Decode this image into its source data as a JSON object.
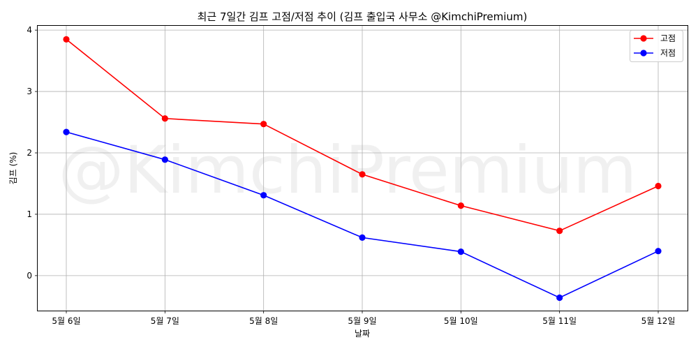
{
  "chart_data": {
    "type": "line",
    "title": "최근 7일간 김프 고점/저점 추이 (김프 출입국 사무소 @KimchiPremium)",
    "xlabel": "날짜",
    "ylabel": "김프 (%)",
    "categories": [
      "5월 6일",
      "5월 7일",
      "5월 8일",
      "5월 9일",
      "5월 10일",
      "5월 11일",
      "5월 12일"
    ],
    "ylim": [
      -0.57,
      4.07
    ],
    "yticks": [
      0,
      1,
      2,
      3,
      4
    ],
    "grid": true,
    "legend_position": "top-right",
    "watermark": "@KimchiPremium",
    "series": [
      {
        "name": "고점",
        "color": "#ff0000",
        "values": [
          3.85,
          2.56,
          2.47,
          1.65,
          1.14,
          0.73,
          1.46
        ]
      },
      {
        "name": "저점",
        "color": "#0000ff",
        "values": [
          2.34,
          1.89,
          1.31,
          0.62,
          0.39,
          -0.36,
          0.4
        ]
      }
    ]
  }
}
